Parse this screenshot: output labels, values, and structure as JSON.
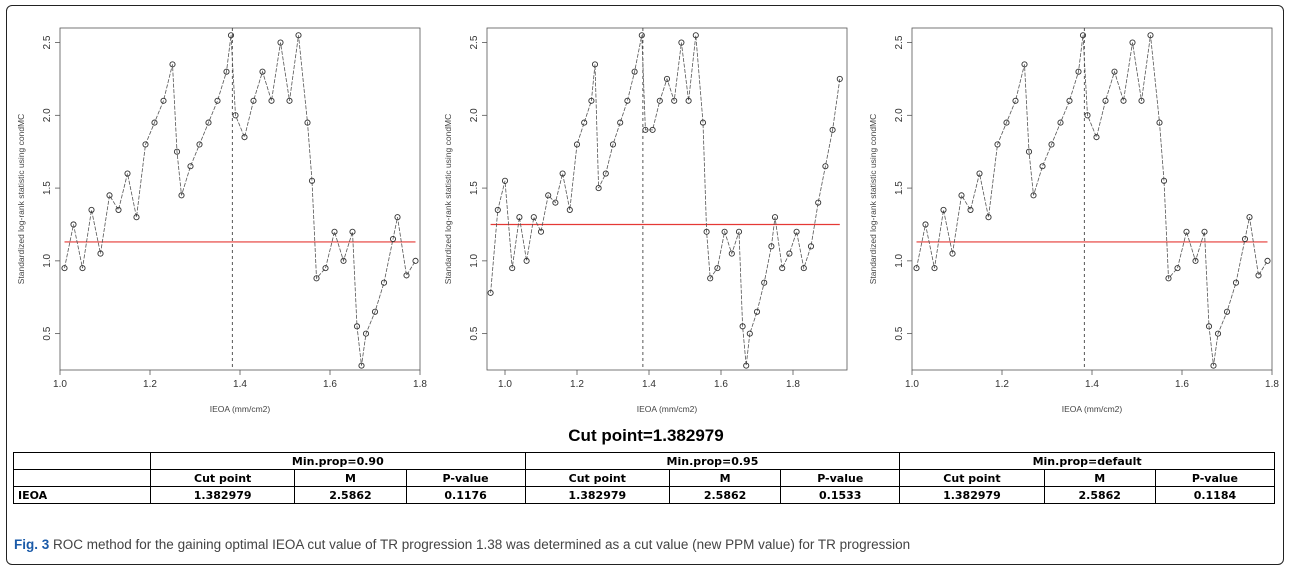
{
  "chart_data": [
    {
      "type": "line",
      "xlabel": "IEOA (mm/cm2)",
      "ylabel": "Standardized log-rank statistic using condMC",
      "xlim": [
        1.0,
        1.8
      ],
      "ylim": [
        0.25,
        2.6
      ],
      "xticks": [
        "1.0",
        "1.2",
        "1.4",
        "1.6",
        "1.8"
      ],
      "yticks": [
        "0.5",
        "1.0",
        "1.5",
        "2.0",
        "2.5"
      ],
      "reference_line": 1.13,
      "cut_line": 1.383,
      "x": [
        1.01,
        1.03,
        1.05,
        1.07,
        1.09,
        1.11,
        1.13,
        1.15,
        1.17,
        1.19,
        1.21,
        1.23,
        1.25,
        1.26,
        1.27,
        1.29,
        1.31,
        1.33,
        1.35,
        1.37,
        1.38,
        1.39,
        1.41,
        1.43,
        1.45,
        1.47,
        1.49,
        1.51,
        1.53,
        1.55,
        1.56,
        1.57,
        1.59,
        1.61,
        1.63,
        1.65,
        1.66,
        1.67,
        1.68,
        1.7,
        1.72,
        1.74,
        1.75,
        1.77,
        1.79
      ],
      "values": [
        0.95,
        1.25,
        0.95,
        1.35,
        1.05,
        1.45,
        1.35,
        1.6,
        1.3,
        1.8,
        1.95,
        2.1,
        2.35,
        1.75,
        1.45,
        1.65,
        1.8,
        1.95,
        2.1,
        2.3,
        2.55,
        2.0,
        1.85,
        2.1,
        2.3,
        2.1,
        2.5,
        2.1,
        2.55,
        1.95,
        1.55,
        0.88,
        0.95,
        1.2,
        1.0,
        1.2,
        0.55,
        0.28,
        0.5,
        0.65,
        0.85,
        1.15,
        1.3,
        0.9,
        1.0
      ]
    },
    {
      "type": "line",
      "xlabel": "IEOA (mm/cm2)",
      "ylabel": "Standardized log-rank statistic using condMC",
      "xlim": [
        0.95,
        1.95
      ],
      "ylim": [
        0.25,
        2.6
      ],
      "xticks": [
        "1.0",
        "1.2",
        "1.4",
        "1.6",
        "1.8"
      ],
      "yticks": [
        "0.5",
        "1.0",
        "1.5",
        "2.0",
        "2.5"
      ],
      "reference_line": 1.25,
      "cut_line": 1.383,
      "x": [
        0.96,
        0.98,
        1.0,
        1.02,
        1.04,
        1.06,
        1.08,
        1.1,
        1.12,
        1.14,
        1.16,
        1.18,
        1.2,
        1.22,
        1.24,
        1.25,
        1.26,
        1.28,
        1.3,
        1.32,
        1.34,
        1.36,
        1.38,
        1.39,
        1.41,
        1.43,
        1.45,
        1.47,
        1.49,
        1.51,
        1.53,
        1.55,
        1.56,
        1.57,
        1.59,
        1.61,
        1.63,
        1.65,
        1.66,
        1.67,
        1.68,
        1.7,
        1.72,
        1.74,
        1.75,
        1.77,
        1.79,
        1.81,
        1.83,
        1.85,
        1.87,
        1.89,
        1.91,
        1.93
      ],
      "values": [
        0.78,
        1.35,
        1.55,
        0.95,
        1.3,
        1.0,
        1.3,
        1.2,
        1.45,
        1.4,
        1.6,
        1.35,
        1.8,
        1.95,
        2.1,
        2.35,
        1.5,
        1.6,
        1.8,
        1.95,
        2.1,
        2.3,
        2.55,
        1.9,
        1.9,
        2.1,
        2.25,
        2.1,
        2.5,
        2.1,
        2.55,
        1.95,
        1.2,
        0.88,
        0.95,
        1.2,
        1.05,
        1.2,
        0.55,
        0.28,
        0.5,
        0.65,
        0.85,
        1.1,
        1.3,
        0.95,
        1.05,
        1.2,
        0.95,
        1.1,
        1.4,
        1.65,
        1.9,
        2.25
      ]
    },
    {
      "type": "line",
      "xlabel": "IEOA (mm/cm2)",
      "ylabel": "Standardized log-rank statistic using condMC",
      "xlim": [
        1.0,
        1.8
      ],
      "ylim": [
        0.25,
        2.6
      ],
      "xticks": [
        "1.0",
        "1.2",
        "1.4",
        "1.6",
        "1.8"
      ],
      "yticks": [
        "0.5",
        "1.0",
        "1.5",
        "2.0",
        "2.5"
      ],
      "reference_line": 1.13,
      "cut_line": 1.383,
      "x": [
        1.01,
        1.03,
        1.05,
        1.07,
        1.09,
        1.11,
        1.13,
        1.15,
        1.17,
        1.19,
        1.21,
        1.23,
        1.25,
        1.26,
        1.27,
        1.29,
        1.31,
        1.33,
        1.35,
        1.37,
        1.38,
        1.39,
        1.41,
        1.43,
        1.45,
        1.47,
        1.49,
        1.51,
        1.53,
        1.55,
        1.56,
        1.57,
        1.59,
        1.61,
        1.63,
        1.65,
        1.66,
        1.67,
        1.68,
        1.7,
        1.72,
        1.74,
        1.75,
        1.77,
        1.79
      ],
      "values": [
        0.95,
        1.25,
        0.95,
        1.35,
        1.05,
        1.45,
        1.35,
        1.6,
        1.3,
        1.8,
        1.95,
        2.1,
        2.35,
        1.75,
        1.45,
        1.65,
        1.8,
        1.95,
        2.1,
        2.3,
        2.55,
        2.0,
        1.85,
        2.1,
        2.3,
        2.1,
        2.5,
        2.1,
        2.55,
        1.95,
        1.55,
        0.88,
        0.95,
        1.2,
        1.0,
        1.2,
        0.55,
        0.28,
        0.5,
        0.65,
        0.85,
        1.15,
        1.3,
        0.9,
        1.0
      ]
    }
  ],
  "cut_title": "Cut point=1.382979",
  "table": {
    "groups": [
      "Min.prop=0.90",
      "Min.prop=0.95",
      "Min.prop=default"
    ],
    "subheaders": [
      "Cut point",
      "M",
      "P-value",
      "Cut point",
      "M",
      "P-value",
      "Cut point",
      "M",
      "P-value"
    ],
    "rows": [
      {
        "label": "IEOA",
        "cells": [
          "1.382979",
          "2.5862",
          "0.1176",
          "1.382979",
          "2.5862",
          "0.1533",
          "1.382979",
          "2.5862",
          "0.1184"
        ]
      }
    ]
  },
  "caption": {
    "prefix": "Fig. 3",
    "text": " ROC method for the gaining optimal IEOA cut value of TR progression 1.38 was determined as a cut value (new PPM value) for TR progression"
  },
  "colors": {
    "reference_line": "#e53935",
    "points": "#333333",
    "axis": "#555555"
  }
}
